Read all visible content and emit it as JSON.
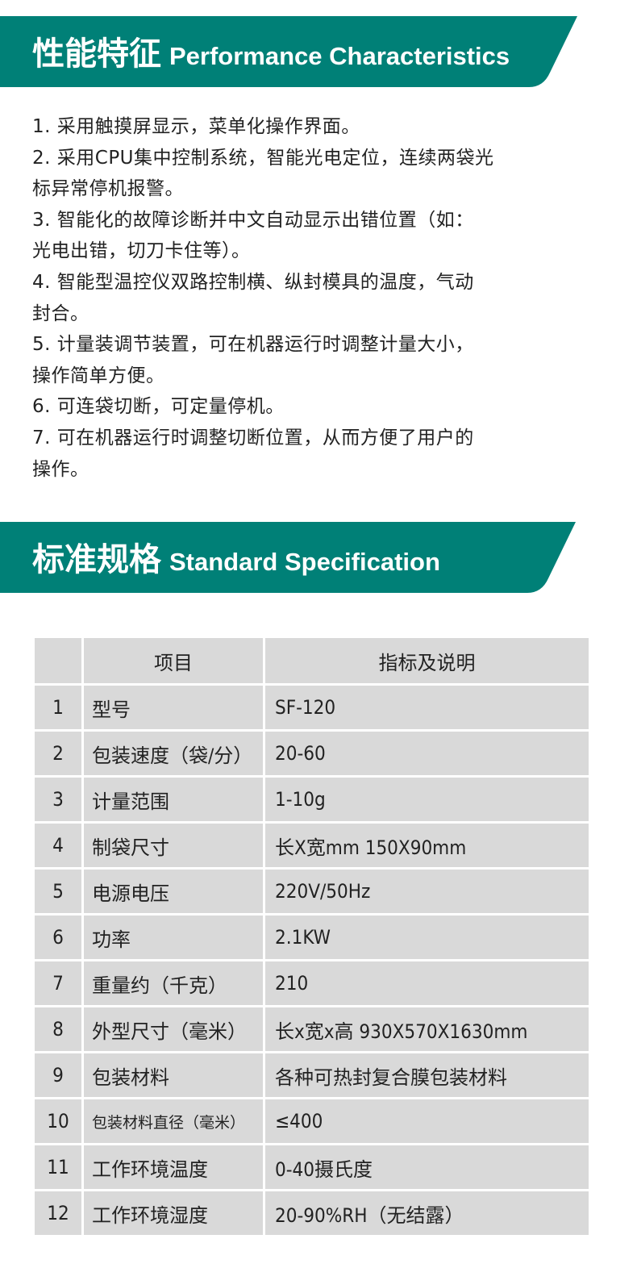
{
  "colors": {
    "banner": "#008077",
    "cell": "#d9d9d9"
  },
  "section1": {
    "title_zh": "性能特征",
    "title_en": "Performance Characteristics"
  },
  "features": [
    "1. 采用触摸屏显示，菜单化操作界面。",
    "2. 采用CPU集中控制系统，智能光电定位，连续两袋光",
    "标异常停机报警。",
    "3. 智能化的故障诊断并中文自动显示出错位置（如：",
    "光电出错，切刀卡住等）。",
    "4. 智能型温控仪双路控制横、纵封模具的温度，气动",
    "封合。",
    "5. 计量装调节装置，可在机器运行时调整计量大小，",
    "操作简单方便。",
    "6. 可连袋切断，可定量停机。",
    "7. 可在机器运行时调整切断位置，从而方便了用户的",
    "操作。"
  ],
  "section2": {
    "title_zh": "标准规格",
    "title_en": "Standard Specification"
  },
  "table": {
    "headers": [
      "",
      "项目",
      "指标及说明"
    ],
    "rows": [
      [
        "1",
        "型号",
        "SF-120"
      ],
      [
        "2",
        "包装速度（袋/分）",
        "20-60"
      ],
      [
        "3",
        "计量范围",
        "1-10g"
      ],
      [
        "4",
        "制袋尺寸",
        "长X宽mm 150X90mm"
      ],
      [
        "5",
        "电源电压",
        "220V/50Hz"
      ],
      [
        "6",
        "功率",
        "2.1KW"
      ],
      [
        "7",
        "重量约（千克）",
        "210"
      ],
      [
        "8",
        "外型尺寸（毫米）",
        "长x宽x高  930X570X1630mm"
      ],
      [
        "9",
        "包装材料",
        "各种可热封复合膜包装材料"
      ],
      [
        "10",
        "包装材料直径（毫米）",
        "≤400"
      ],
      [
        "11",
        "工作环境温度",
        "0-40摄氏度"
      ],
      [
        "12",
        "工作环境湿度",
        "20-90%RH（无结露）"
      ]
    ]
  }
}
